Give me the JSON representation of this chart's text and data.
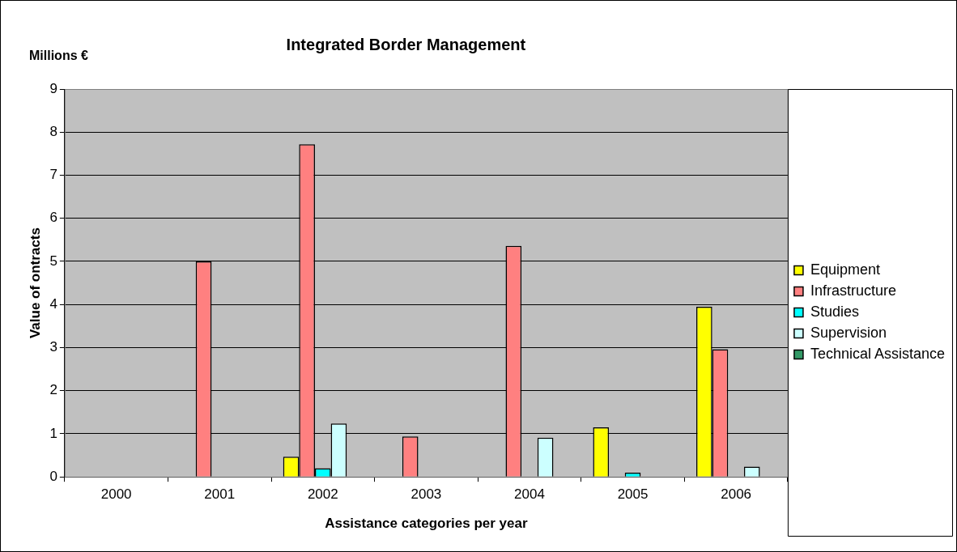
{
  "chart_data": {
    "type": "bar",
    "title": "Integrated Border Management",
    "xlabel": "Assistance categories per year",
    "ylabel": "Value of ontracts",
    "annotations": [
      "Millions €"
    ],
    "categories": [
      "2000",
      "2001",
      "2002",
      "2003",
      "2004",
      "2005",
      "2006"
    ],
    "series": [
      {
        "name": "Equipment",
        "color": "#ffff00",
        "values": [
          0,
          0,
          0.47,
          0,
          0,
          1.15,
          3.95
        ]
      },
      {
        "name": "Infrastructure",
        "color": "#ff8080",
        "values": [
          0,
          5.0,
          7.72,
          0.94,
          5.36,
          0,
          2.96
        ]
      },
      {
        "name": "Studies",
        "color": "#00ffff",
        "values": [
          0,
          0,
          0.2,
          0,
          0,
          0.1,
          0
        ]
      },
      {
        "name": "Supervision",
        "color": "#ccffff",
        "values": [
          0,
          0,
          1.24,
          0,
          0.91,
          0,
          0.24
        ]
      },
      {
        "name": "Technical Assistance",
        "color": "#339966",
        "values": [
          0,
          0,
          0,
          0,
          0,
          0,
          0
        ]
      }
    ],
    "ylim": [
      0,
      9
    ],
    "yticks": [
      0,
      1,
      2,
      3,
      4,
      5,
      6,
      7,
      8,
      9
    ],
    "grid": "y",
    "legend": "right"
  }
}
